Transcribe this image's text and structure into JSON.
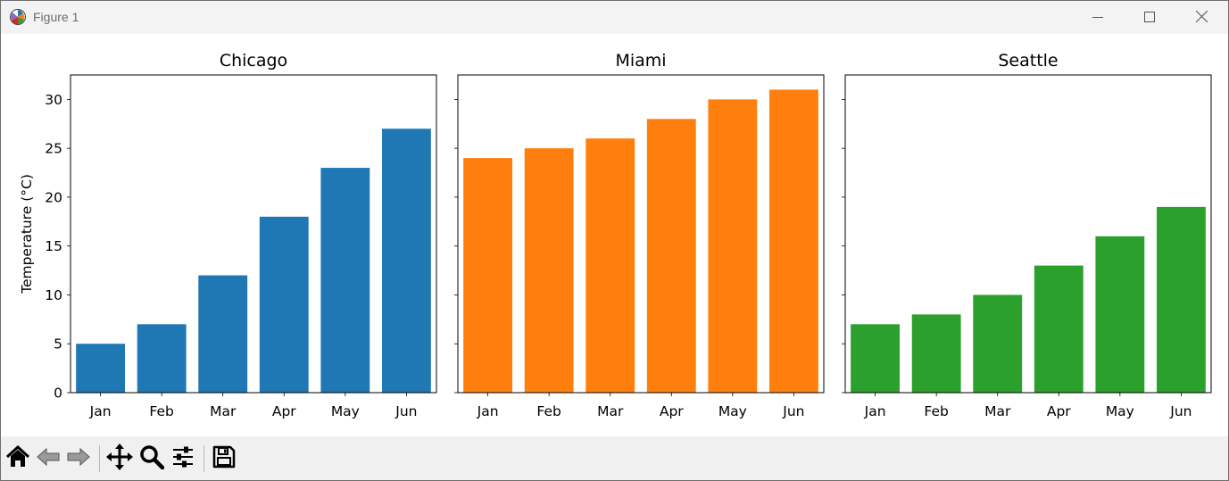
{
  "window": {
    "title": "Figure 1",
    "icon": "matplotlib-logo-icon",
    "controls": [
      "minimize-icon",
      "maximize-icon",
      "close-icon"
    ]
  },
  "toolbar": {
    "buttons": [
      {
        "name": "home-button",
        "icon": "home-icon"
      },
      {
        "name": "back-button",
        "icon": "back-arrow-icon"
      },
      {
        "name": "forward-button",
        "icon": "forward-arrow-icon"
      },
      {
        "name": "pan-button",
        "icon": "move-icon"
      },
      {
        "name": "zoom-button",
        "icon": "zoom-icon"
      },
      {
        "name": "configure-subplots-button",
        "icon": "sliders-icon"
      },
      {
        "name": "save-button",
        "icon": "save-icon"
      }
    ]
  },
  "chart_data": [
    {
      "type": "bar",
      "title": "Chicago",
      "categories": [
        "Jan",
        "Feb",
        "Mar",
        "Apr",
        "May",
        "Jun"
      ],
      "values": [
        5,
        7,
        12,
        18,
        23,
        27
      ],
      "color": "#1f77b4",
      "ylabel": "Temperature (°C)",
      "yticks": [
        0,
        5,
        10,
        15,
        20,
        25,
        30
      ],
      "ylim": [
        0,
        32.5
      ],
      "grid": false
    },
    {
      "type": "bar",
      "title": "Miami",
      "categories": [
        "Jan",
        "Feb",
        "Mar",
        "Apr",
        "May",
        "Jun"
      ],
      "values": [
        24,
        25,
        26,
        28,
        30,
        31
      ],
      "color": "#ff7f0e",
      "ylabel": "",
      "ylim": [
        0,
        32.5
      ],
      "grid": false
    },
    {
      "type": "bar",
      "title": "Seattle",
      "categories": [
        "Jan",
        "Feb",
        "Mar",
        "Apr",
        "May",
        "Jun"
      ],
      "values": [
        7,
        8,
        10,
        13,
        16,
        19
      ],
      "color": "#2ca02c",
      "ylabel": "",
      "ylim": [
        0,
        32.5
      ],
      "grid": false
    }
  ]
}
